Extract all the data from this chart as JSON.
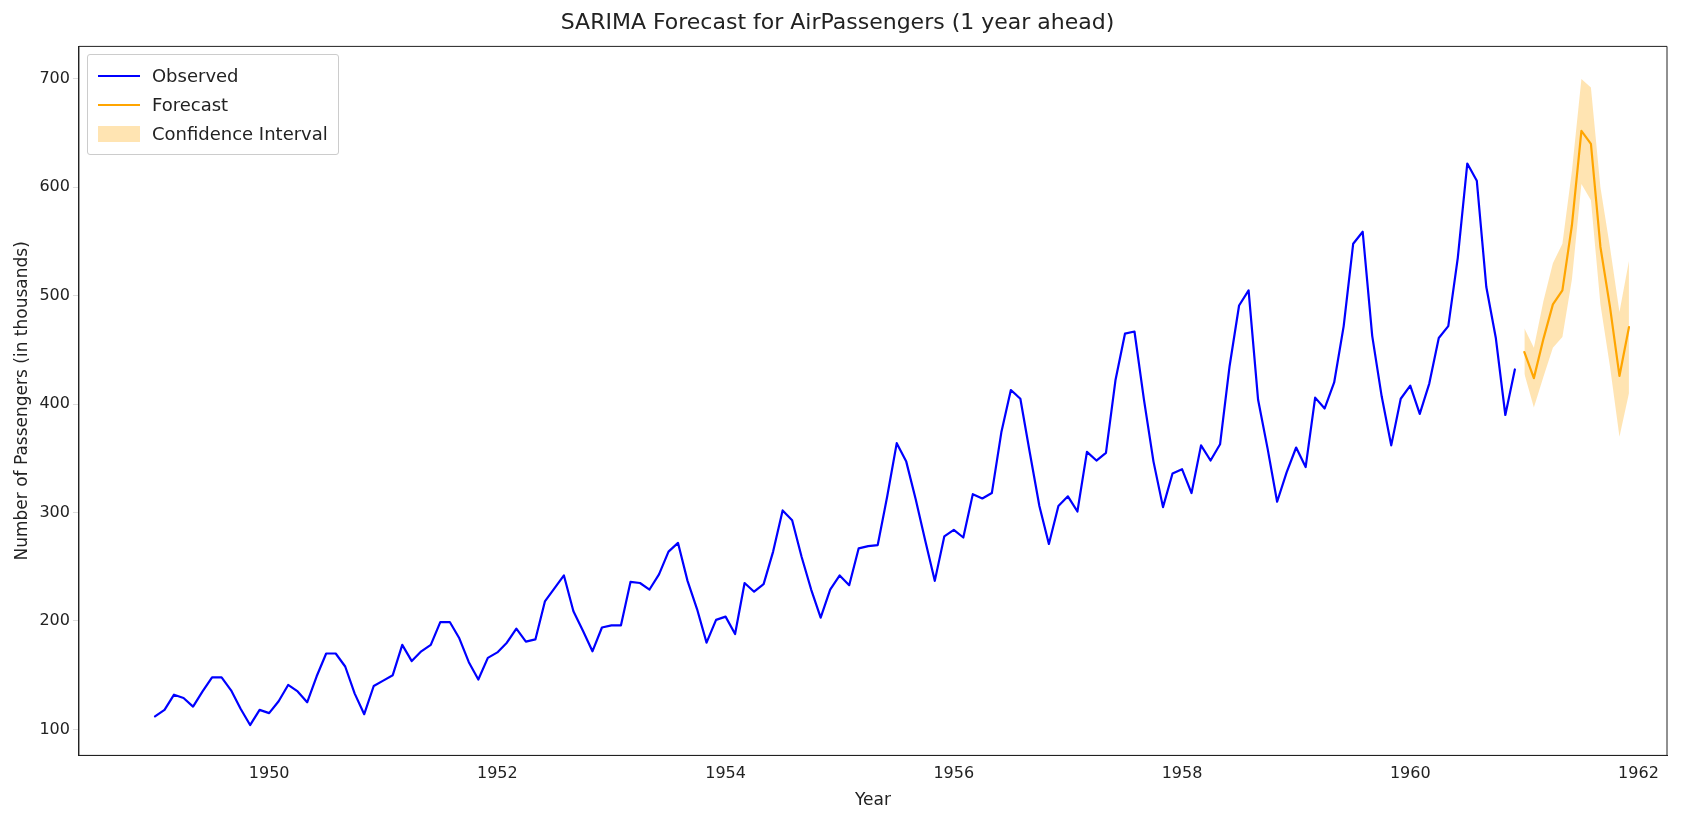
{
  "chart_data": {
    "type": "line",
    "title": "SARIMA Forecast for AirPassengers (1 year ahead)",
    "xlabel": "Year",
    "ylabel": "Number of Passengers (in thousands)",
    "xlim": [
      "1948-05",
      "1962-04"
    ],
    "xticks": [
      "1950",
      "1952",
      "1954",
      "1956",
      "1958",
      "1960",
      "1962"
    ],
    "ylim": [
      76,
      730
    ],
    "yticks": [
      100,
      200,
      300,
      400,
      500,
      600,
      700
    ],
    "grid": false,
    "legend": "top left",
    "line_style": "solid",
    "marker": "none",
    "series": [
      {
        "name": "Observed",
        "color": "#0000ff",
        "x": [
          "1949-01",
          "1949-02",
          "1949-03",
          "1949-04",
          "1949-05",
          "1949-06",
          "1949-07",
          "1949-08",
          "1949-09",
          "1949-10",
          "1949-11",
          "1949-12",
          "1950-01",
          "1950-02",
          "1950-03",
          "1950-04",
          "1950-05",
          "1950-06",
          "1950-07",
          "1950-08",
          "1950-09",
          "1950-10",
          "1950-11",
          "1950-12",
          "1951-01",
          "1951-02",
          "1951-03",
          "1951-04",
          "1951-05",
          "1951-06",
          "1951-07",
          "1951-08",
          "1951-09",
          "1951-10",
          "1951-11",
          "1951-12",
          "1952-01",
          "1952-02",
          "1952-03",
          "1952-04",
          "1952-05",
          "1952-06",
          "1952-07",
          "1952-08",
          "1952-09",
          "1952-10",
          "1952-11",
          "1952-12",
          "1953-01",
          "1953-02",
          "1953-03",
          "1953-04",
          "1953-05",
          "1953-06",
          "1953-07",
          "1953-08",
          "1953-09",
          "1953-10",
          "1953-11",
          "1953-12",
          "1954-01",
          "1954-02",
          "1954-03",
          "1954-04",
          "1954-05",
          "1954-06",
          "1954-07",
          "1954-08",
          "1954-09",
          "1954-10",
          "1954-11",
          "1954-12",
          "1955-01",
          "1955-02",
          "1955-03",
          "1955-04",
          "1955-05",
          "1955-06",
          "1955-07",
          "1955-08",
          "1955-09",
          "1955-10",
          "1955-11",
          "1955-12",
          "1956-01",
          "1956-02",
          "1956-03",
          "1956-04",
          "1956-05",
          "1956-06",
          "1956-07",
          "1956-08",
          "1956-09",
          "1956-10",
          "1956-11",
          "1956-12",
          "1957-01",
          "1957-02",
          "1957-03",
          "1957-04",
          "1957-05",
          "1957-06",
          "1957-07",
          "1957-08",
          "1957-09",
          "1957-10",
          "1957-11",
          "1957-12",
          "1958-01",
          "1958-02",
          "1958-03",
          "1958-04",
          "1958-05",
          "1958-06",
          "1958-07",
          "1958-08",
          "1958-09",
          "1958-10",
          "1958-11",
          "1958-12",
          "1959-01",
          "1959-02",
          "1959-03",
          "1959-04",
          "1959-05",
          "1959-06",
          "1959-07",
          "1959-08",
          "1959-09",
          "1959-10",
          "1959-11",
          "1959-12",
          "1960-01",
          "1960-02",
          "1960-03",
          "1960-04",
          "1960-05",
          "1960-06",
          "1960-07",
          "1960-08",
          "1960-09",
          "1960-10",
          "1960-11",
          "1960-12"
        ],
        "values": [
          112,
          118,
          132,
          129,
          121,
          135,
          148,
          148,
          136,
          119,
          104,
          118,
          115,
          126,
          141,
          135,
          125,
          149,
          170,
          170,
          158,
          133,
          114,
          140,
          145,
          150,
          178,
          163,
          172,
          178,
          199,
          199,
          184,
          162,
          146,
          166,
          171,
          180,
          193,
          181,
          183,
          218,
          230,
          242,
          209,
          191,
          172,
          194,
          196,
          196,
          236,
          235,
          229,
          243,
          264,
          272,
          237,
          211,
          180,
          201,
          204,
          188,
          235,
          227,
          234,
          264,
          302,
          293,
          259,
          229,
          203,
          229,
          242,
          233,
          267,
          269,
          270,
          315,
          364,
          347,
          312,
          274,
          237,
          278,
          284,
          277,
          317,
          313,
          318,
          374,
          413,
          405,
          355,
          306,
          271,
          306,
          315,
          301,
          356,
          348,
          355,
          422,
          465,
          467,
          404,
          347,
          305,
          336,
          340,
          318,
          362,
          348,
          363,
          435,
          491,
          505,
          404,
          359,
          310,
          337,
          360,
          342,
          406,
          396,
          420,
          472,
          548,
          559,
          463,
          407,
          362,
          405,
          417,
          391,
          419,
          461,
          472,
          535,
          622,
          606,
          508,
          461,
          390,
          432
        ]
      },
      {
        "name": "Forecast",
        "color": "#ffa500",
        "x": [
          "1961-01",
          "1961-02",
          "1961-03",
          "1961-04",
          "1961-05",
          "1961-06",
          "1961-07",
          "1961-08",
          "1961-09",
          "1961-10",
          "1961-11",
          "1961-12"
        ],
        "values": [
          448,
          424,
          460,
          492,
          505,
          565,
          652,
          640,
          545,
          490,
          426,
          471
        ],
        "lower": [
          428,
          397,
          425,
          452,
          462,
          515,
          603,
          588,
          492,
          435,
          370,
          410
        ],
        "upper": [
          470,
          452,
          495,
          530,
          548,
          615,
          700,
          692,
          600,
          545,
          485,
          532
        ]
      }
    ],
    "annotations": [
      "Confidence Interval"
    ]
  }
}
